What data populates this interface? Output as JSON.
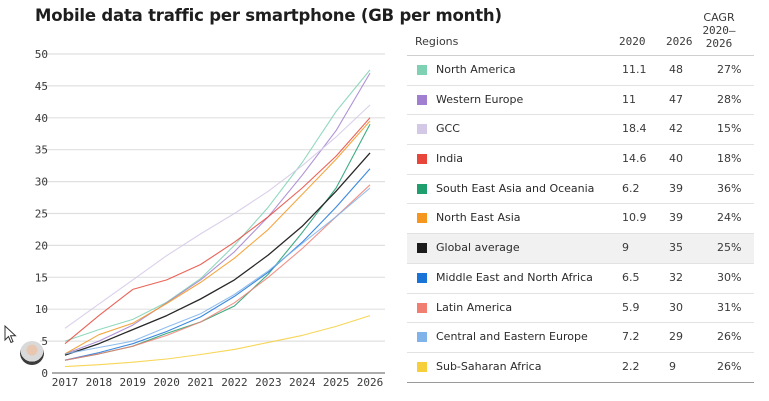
{
  "title": "Mobile data traffic per smartphone (GB per month)",
  "table": {
    "headers": {
      "regions": "Regions",
      "y2020": "2020",
      "y2026": "2026",
      "cagr_line1": "CAGR",
      "cagr_line2": "2020–",
      "cagr_line3": "2026"
    },
    "rows": [
      {
        "region": "North America",
        "v2020": "11.1",
        "v2026": "48",
        "cagr": "27%",
        "color": "#7fd1b4"
      },
      {
        "region": "Western Europe",
        "v2020": "11",
        "v2026": "47",
        "cagr": "28%",
        "color": "#a17fd0"
      },
      {
        "region": "GCC",
        "v2020": "18.4",
        "v2026": "42",
        "cagr": "15%",
        "color": "#d3c8e6"
      },
      {
        "region": "India",
        "v2020": "14.6",
        "v2026": "40",
        "cagr": "18%",
        "color": "#e8463a"
      },
      {
        "region": "South East Asia and Oceania",
        "v2020": "6.2",
        "v2026": "39",
        "cagr": "36%",
        "color": "#1f9e6e"
      },
      {
        "region": "North East Asia",
        "v2020": "10.9",
        "v2026": "39",
        "cagr": "24%",
        "color": "#f5961e"
      },
      {
        "region": "Global average",
        "v2020": "9",
        "v2026": "35",
        "cagr": "25%",
        "color": "#1c1c1c",
        "highlight": true
      },
      {
        "region": "Middle East and North Africa",
        "v2020": "6.5",
        "v2026": "32",
        "cagr": "30%",
        "color": "#1a74d8"
      },
      {
        "region": "Latin America",
        "v2020": "5.9",
        "v2026": "30",
        "cagr": "31%",
        "color": "#f07f72"
      },
      {
        "region": "Central and Eastern Europe",
        "v2020": "7.2",
        "v2026": "29",
        "cagr": "26%",
        "color": "#7fb3ea"
      },
      {
        "region": "Sub-Saharan Africa",
        "v2020": "2.2",
        "v2026": "9",
        "cagr": "26%",
        "color": "#f6cf3a"
      }
    ]
  },
  "overlay": {
    "cursor_icon": "mouse-pointer-icon",
    "avatar": "presenter-avatar"
  },
  "chart_data": {
    "type": "line",
    "title": "Mobile data traffic per smartphone (GB per month)",
    "xlabel": "",
    "ylabel": "",
    "x": [
      "2017",
      "2018",
      "2019",
      "2020",
      "2021",
      "2022",
      "2023",
      "2024",
      "2025",
      "2026"
    ],
    "yticks": [
      "0",
      "5",
      "10",
      "15",
      "20",
      "25",
      "30",
      "35",
      "40",
      "45",
      "50"
    ],
    "ylim": [
      0,
      50
    ],
    "grid": true,
    "legend": "table-right",
    "series": [
      {
        "name": "North America",
        "color": "#7fd1b4",
        "values": [
          5,
          6.8,
          8.4,
          11.1,
          14.8,
          20,
          26,
          33,
          41,
          47.5
        ]
      },
      {
        "name": "Western Europe",
        "color": "#a17fd0",
        "values": [
          3,
          5,
          7.5,
          11,
          14.6,
          19,
          24.5,
          31,
          38,
          47
        ]
      },
      {
        "name": "GCC",
        "color": "#d3c8e6",
        "values": [
          7,
          10.8,
          14.6,
          18.4,
          21.8,
          25,
          28.5,
          32.5,
          37,
          42
        ]
      },
      {
        "name": "India",
        "color": "#e8463a",
        "values": [
          4.6,
          9,
          13.1,
          14.6,
          17,
          20.5,
          24.5,
          29,
          34,
          40
        ]
      },
      {
        "name": "South East Asia and Oceania",
        "color": "#1f9e6e",
        "values": [
          2,
          3,
          4.2,
          6.2,
          8,
          10.5,
          15.5,
          22,
          29,
          39
        ]
      },
      {
        "name": "North East Asia",
        "color": "#f5961e",
        "values": [
          3,
          6,
          7.8,
          10.9,
          14.2,
          18,
          22.5,
          28,
          33.5,
          39.5
        ]
      },
      {
        "name": "Global average",
        "color": "#1c1c1c",
        "values": [
          2.8,
          4.6,
          6.8,
          9,
          11.6,
          14.6,
          18.5,
          23,
          28.5,
          34.5
        ]
      },
      {
        "name": "Middle East and North Africa",
        "color": "#1a74d8",
        "values": [
          2,
          3.2,
          4.6,
          6.5,
          8.8,
          12,
          15.8,
          20.5,
          26,
          32
        ]
      },
      {
        "name": "Latin America",
        "color": "#f07f72",
        "values": [
          2,
          3,
          4.2,
          5.9,
          8,
          11,
          15,
          19.5,
          24.5,
          29.5
        ]
      },
      {
        "name": "Central and Eastern Europe",
        "color": "#7fb3ea",
        "values": [
          3,
          4,
          5,
          7.2,
          9.3,
          12.3,
          16,
          20.3,
          24.5,
          29
        ]
      },
      {
        "name": "Sub-Saharan Africa",
        "color": "#f6cf3a",
        "values": [
          1,
          1.3,
          1.7,
          2.2,
          2.9,
          3.7,
          4.8,
          5.9,
          7.3,
          9
        ]
      }
    ]
  }
}
